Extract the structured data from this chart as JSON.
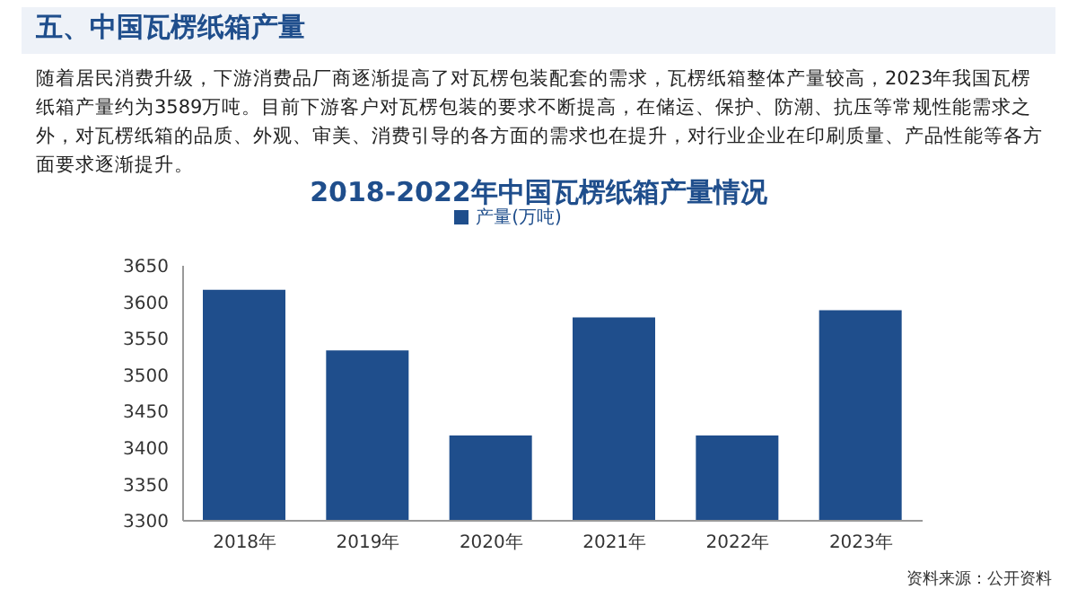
{
  "chart_data": {
    "type": "bar",
    "title": "2018-2022年中国瓦楞纸箱产量情况",
    "annotations": [
      "五、中国瓦楞纸箱产量",
      "随着居民消费升级，下游消费品厂商逐渐提高了对瓦楞包装配套的需求，瓦楞纸箱整体产量较高，2023年我国瓦楞纸箱产量约为3589万吨。目前下游客户对瓦楞包装的要求不断提高，在储运、保护、防潮、抗压等常规性能需求之外，对瓦楞纸箱的品质、外观、审美、消费引导的各方面的需求也在提升，对行业企业在印刷质量、产品性能等各方面要求逐渐提升。",
      "资料来源：公开资料"
    ],
    "categories": [
      "2018年",
      "2019年",
      "2020年",
      "2021年",
      "2022年",
      "2023年"
    ],
    "series": [
      {
        "name": "产量(万吨)",
        "color": "#1f4e8c",
        "values": [
          3617,
          3534,
          3417,
          3579,
          3417,
          3589
        ]
      }
    ],
    "ylim": [
      3300,
      3650
    ],
    "yticks": [
      3300,
      3350,
      3400,
      3450,
      3500,
      3550,
      3600,
      3650
    ],
    "legend": "top"
  }
}
